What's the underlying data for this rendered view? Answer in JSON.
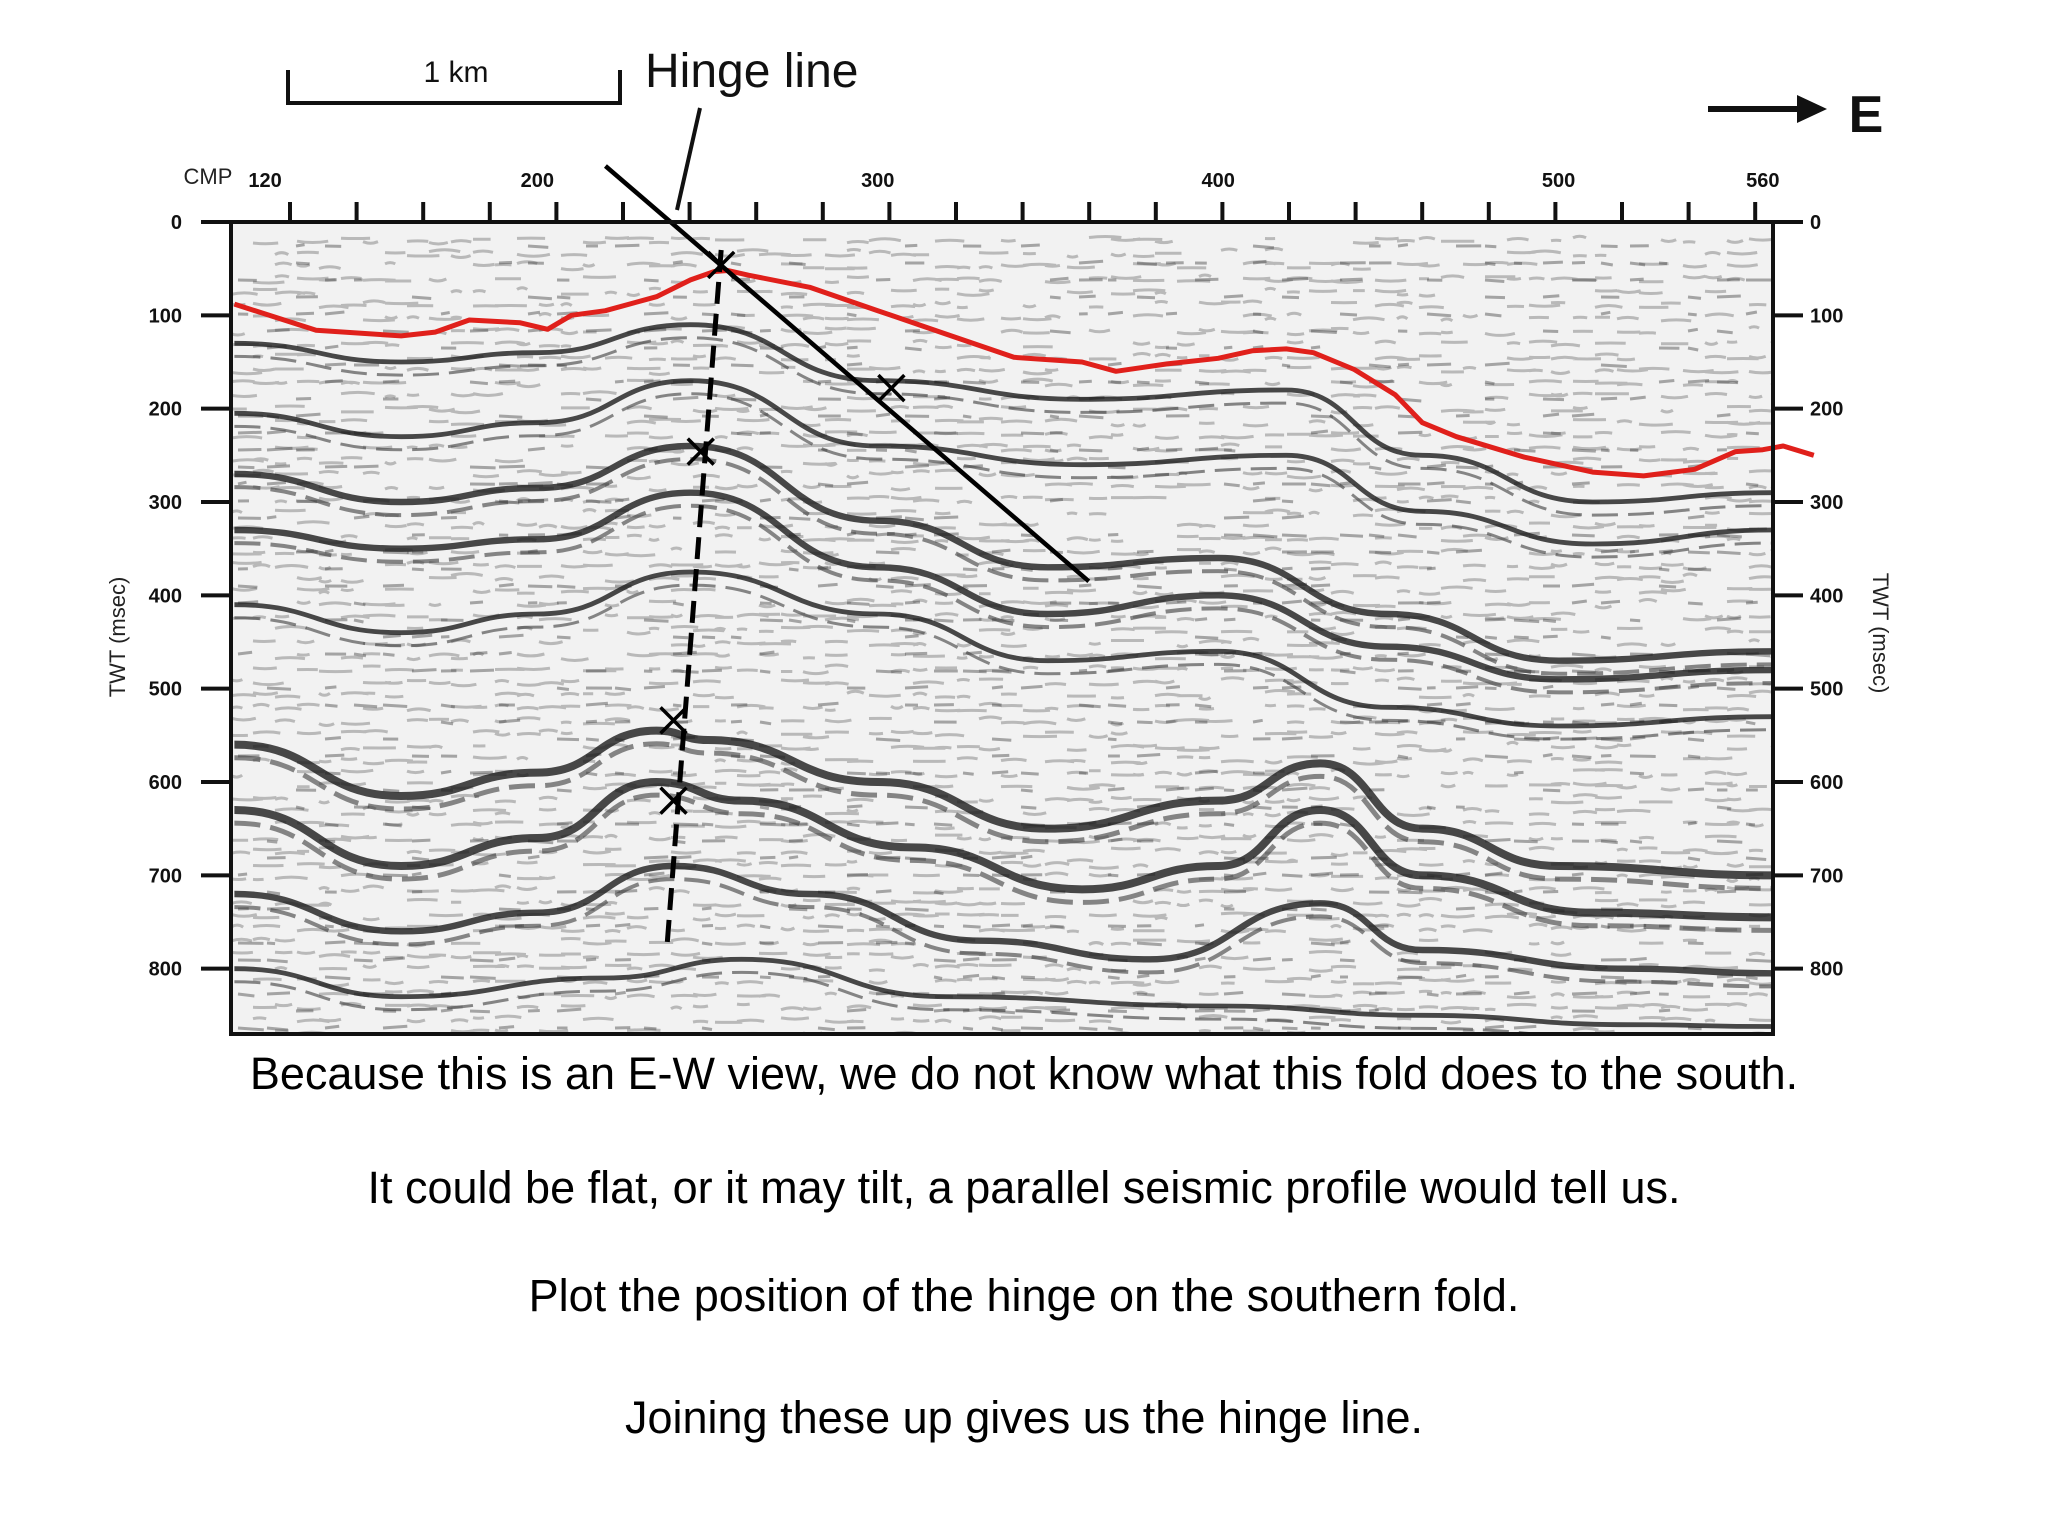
{
  "scale_bar": {
    "label": "1 km"
  },
  "annotation": {
    "hinge_label": "Hinge line"
  },
  "direction": {
    "label": "E"
  },
  "x_axis": {
    "title": "CMP",
    "range": [
      110,
      563
    ],
    "ticks": [
      120,
      200,
      300,
      400,
      500,
      560
    ]
  },
  "y_axis": {
    "title_left": "TWT (msec)",
    "title_right": "TWT (msec)",
    "range": [
      0,
      870
    ],
    "ticks": [
      0,
      100,
      200,
      300,
      400,
      500,
      600,
      700,
      800
    ]
  },
  "horizon": {
    "color": "#e0201b",
    "points": [
      [
        111,
        88
      ],
      [
        135,
        116
      ],
      [
        160,
        122
      ],
      [
        170,
        118
      ],
      [
        180,
        105
      ],
      [
        195,
        108
      ],
      [
        203,
        115
      ],
      [
        210,
        100
      ],
      [
        220,
        95
      ],
      [
        235,
        80
      ],
      [
        245,
        62
      ],
      [
        252,
        53
      ],
      [
        256,
        52
      ],
      [
        262,
        57
      ],
      [
        280,
        70
      ],
      [
        300,
        95
      ],
      [
        320,
        120
      ],
      [
        340,
        145
      ],
      [
        360,
        150
      ],
      [
        370,
        160
      ],
      [
        385,
        152
      ],
      [
        400,
        146
      ],
      [
        410,
        138
      ],
      [
        420,
        136
      ],
      [
        428,
        140
      ],
      [
        440,
        158
      ],
      [
        452,
        185
      ],
      [
        460,
        215
      ],
      [
        470,
        230
      ],
      [
        490,
        252
      ],
      [
        510,
        268
      ],
      [
        525,
        272
      ],
      [
        540,
        265
      ],
      [
        552,
        246
      ],
      [
        560,
        244
      ],
      [
        566,
        240
      ],
      [
        575,
        250
      ]
    ]
  },
  "hinge_line": {
    "color": "#000000",
    "start": [
      220,
      -60
    ],
    "end": [
      362,
      385
    ]
  },
  "dashed_line": {
    "color": "#000000",
    "start": [
      254,
      30
    ],
    "end": [
      238,
      780
    ]
  },
  "hinge_marks": [
    [
      254,
      46
    ],
    [
      304,
      178
    ],
    [
      248,
      246
    ],
    [
      240,
      534
    ],
    [
      240,
      620
    ]
  ],
  "captions": [
    "Because this is an E-W view, we do not know what this fold does to the south.",
    "It could be flat, or it may tilt, a parallel seismic profile would tell us.",
    "Plot the position of the hinge on the southern fold.",
    "Joining these up gives us the hinge line."
  ],
  "seismic_reflectors": [
    {
      "points": [
        [
          111,
          130
        ],
        [
          160,
          150
        ],
        [
          200,
          140
        ],
        [
          245,
          110
        ],
        [
          300,
          170
        ],
        [
          360,
          190
        ],
        [
          420,
          180
        ],
        [
          460,
          250
        ],
        [
          510,
          300
        ],
        [
          563,
          290
        ]
      ],
      "weight": 3
    },
    {
      "points": [
        [
          111,
          205
        ],
        [
          160,
          230
        ],
        [
          200,
          215
        ],
        [
          245,
          170
        ],
        [
          300,
          240
        ],
        [
          360,
          260
        ],
        [
          420,
          250
        ],
        [
          460,
          310
        ],
        [
          510,
          345
        ],
        [
          563,
          330
        ]
      ],
      "weight": 3
    },
    {
      "points": [
        [
          111,
          270
        ],
        [
          160,
          300
        ],
        [
          200,
          285
        ],
        [
          245,
          240
        ],
        [
          300,
          320
        ],
        [
          350,
          370
        ],
        [
          400,
          360
        ],
        [
          450,
          420
        ],
        [
          500,
          470
        ],
        [
          563,
          460
        ]
      ],
      "weight": 4
    },
    {
      "points": [
        [
          111,
          330
        ],
        [
          160,
          350
        ],
        [
          200,
          340
        ],
        [
          245,
          290
        ],
        [
          300,
          370
        ],
        [
          350,
          420
        ],
        [
          400,
          400
        ],
        [
          450,
          455
        ],
        [
          500,
          490
        ],
        [
          563,
          480
        ]
      ],
      "weight": 4
    },
    {
      "points": [
        [
          111,
          410
        ],
        [
          160,
          440
        ],
        [
          200,
          420
        ],
        [
          245,
          375
        ],
        [
          300,
          420
        ],
        [
          350,
          470
        ],
        [
          400,
          460
        ],
        [
          450,
          520
        ],
        [
          500,
          540
        ],
        [
          563,
          530
        ]
      ],
      "weight": 3
    },
    {
      "points": [
        [
          111,
          560
        ],
        [
          160,
          615
        ],
        [
          200,
          590
        ],
        [
          235,
          545
        ],
        [
          250,
          555
        ],
        [
          300,
          600
        ],
        [
          350,
          650
        ],
        [
          400,
          620
        ],
        [
          430,
          580
        ],
        [
          460,
          650
        ],
        [
          500,
          690
        ],
        [
          563,
          700
        ]
      ],
      "weight": 5
    },
    {
      "points": [
        [
          111,
          630
        ],
        [
          160,
          690
        ],
        [
          200,
          660
        ],
        [
          235,
          600
        ],
        [
          260,
          620
        ],
        [
          310,
          670
        ],
        [
          360,
          715
        ],
        [
          400,
          690
        ],
        [
          430,
          630
        ],
        [
          460,
          700
        ],
        [
          510,
          740
        ],
        [
          563,
          745
        ]
      ],
      "weight": 5
    },
    {
      "points": [
        [
          111,
          720
        ],
        [
          160,
          760
        ],
        [
          200,
          740
        ],
        [
          240,
          690
        ],
        [
          280,
          720
        ],
        [
          330,
          770
        ],
        [
          380,
          790
        ],
        [
          430,
          730
        ],
        [
          460,
          780
        ],
        [
          520,
          800
        ],
        [
          563,
          805
        ]
      ],
      "weight": 4
    },
    {
      "points": [
        [
          111,
          800
        ],
        [
          160,
          830
        ],
        [
          220,
          810
        ],
        [
          260,
          790
        ],
        [
          320,
          830
        ],
        [
          400,
          840
        ],
        [
          460,
          850
        ],
        [
          520,
          860
        ],
        [
          563,
          862
        ]
      ],
      "weight": 3
    }
  ]
}
